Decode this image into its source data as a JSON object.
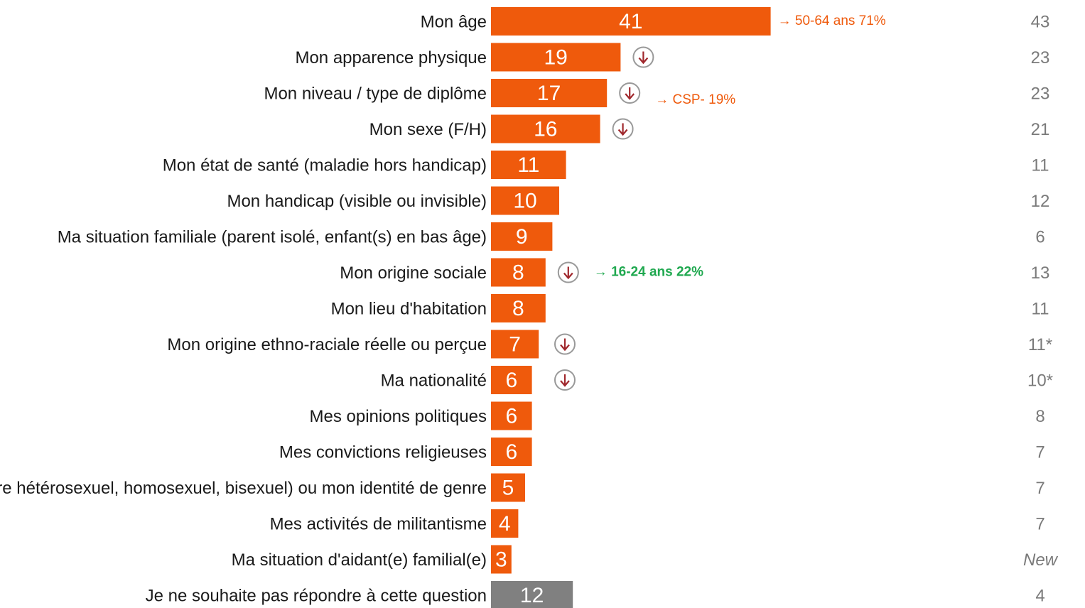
{
  "chart_data": {
    "type": "bar",
    "orientation": "horizontal",
    "categories": [
      "Mon âge",
      "Mon apparence physique",
      "Mon niveau / type de diplôme",
      "Mon sexe (F/H)",
      "Mon état de santé (maladie hors handicap)",
      "Mon handicap (visible ou invisible)",
      "Ma situation familiale (parent isolé, enfant(s) en bas âge)",
      "Mon origine sociale",
      "Mon lieu d'habitation",
      "Mon origine ethno-raciale réelle ou perçue",
      "Ma nationalité",
      "Mes opinions politiques",
      "Mes convictions religieuses",
      "être hétérosexuel, homosexuel, bisexuel) ou mon identité de genre",
      "Mes activités de militantisme",
      "Ma situation d'aidant(e) familial(e)",
      "Je ne souhaite pas répondre à cette question"
    ],
    "values": [
      41,
      19,
      17,
      16,
      11,
      10,
      9,
      8,
      8,
      7,
      6,
      6,
      6,
      5,
      4,
      3,
      12
    ],
    "colors": [
      "#ef5a0c",
      "#ef5a0c",
      "#ef5a0c",
      "#ef5a0c",
      "#ef5a0c",
      "#ef5a0c",
      "#ef5a0c",
      "#ef5a0c",
      "#ef5a0c",
      "#ef5a0c",
      "#ef5a0c",
      "#ef5a0c",
      "#ef5a0c",
      "#ef5a0c",
      "#ef5a0c",
      "#ef5a0c",
      "#808080"
    ],
    "previous": [
      "43",
      "23",
      "23",
      "21",
      "11",
      "12",
      "6",
      "13",
      "11",
      "11*",
      "10*",
      "8",
      "7",
      "7",
      "7",
      "New",
      "4"
    ],
    "annotations": [
      {
        "text": "→  50-64 ans 71%",
        "color": "#ef5a0c"
      },
      null,
      {
        "text": "→  CSP- 19%",
        "color": "#ef5a0c"
      },
      null,
      null,
      null,
      null,
      {
        "text": "→ 16-24 ans 22%",
        "color": "#1fa84f"
      },
      null,
      null,
      null,
      null,
      null,
      null,
      null,
      null,
      null
    ]
  }
}
